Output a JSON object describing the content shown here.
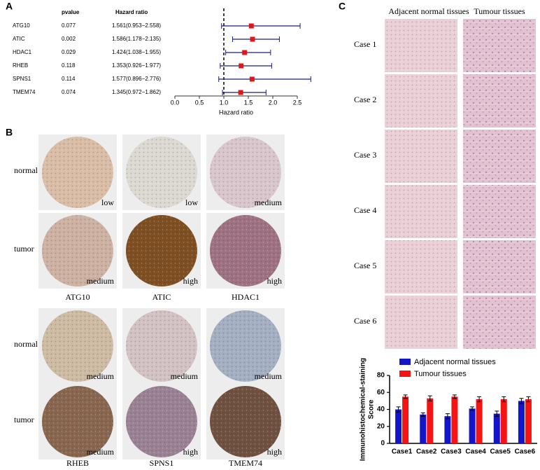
{
  "panels": {
    "a": "A",
    "b": "B",
    "c": "C"
  },
  "chart_data": [
    {
      "type": "forest",
      "columns": [
        "pvalue",
        "Hazard ratio"
      ],
      "categories": [
        "ATG10",
        "ATIC",
        "HDAC1",
        "RHEB",
        "SPNS1",
        "TMEM74"
      ],
      "pvalues": [
        0.077,
        0.002,
        0.029,
        0.118,
        0.114,
        0.074
      ],
      "values": [
        1.561,
        1.586,
        1.424,
        1.353,
        1.577,
        1.345
      ],
      "lower": [
        0.953,
        1.178,
        1.038,
        0.926,
        0.896,
        0.972
      ],
      "upper": [
        2.558,
        2.135,
        1.955,
        1.977,
        2.776,
        1.862
      ],
      "value_labels": [
        "1.561(0.953−2.558)",
        "1.586(1.178−2.135)",
        "1.424(1.038−1.955)",
        "1.353(0.926−1.977)",
        "1.577(0.896−2.776)",
        "1.345(0.972−1.862)"
      ],
      "reference": 1,
      "color": "#e0161b",
      "line_color": "#1c1c7a",
      "xlabel": "Hazard ratio",
      "xlim": [
        0,
        2.5
      ],
      "xticks": [
        {
          "value": 0,
          "label": "0.0"
        },
        0.5,
        {
          "value": 1,
          "label": "1.0"
        },
        1.5,
        {
          "value": 2,
          "label": "2.0"
        },
        2.5
      ]
    },
    {
      "type": "bar",
      "categories": [
        "Case1",
        "Case2",
        "Case3",
        "Case4",
        "Case5",
        "Case6"
      ],
      "series": [
        {
          "name": "Adjacent normal tissues",
          "color": "#1414c8",
          "values": [
            40,
            34,
            32,
            41,
            35,
            50
          ],
          "errors": [
            3,
            2,
            3,
            2,
            3,
            3
          ]
        },
        {
          "name": "Tumour tissues",
          "color": "#f41414",
          "values": [
            55,
            53,
            55,
            52,
            52,
            52
          ],
          "errors": [
            2,
            3,
            2,
            3,
            3,
            3
          ]
        }
      ],
      "ylabel": [
        "Immunohistochemical-staining",
        "Score"
      ],
      "ylim": [
        0,
        80
      ],
      "yticks": [
        0,
        20,
        40,
        60,
        80
      ]
    }
  ],
  "tissue": {
    "row_labels": [
      "normal",
      "tumor",
      "normal",
      "tumor"
    ],
    "genes": [
      "ATG10",
      "ATIC",
      "HDAC1",
      "RHEB",
      "SPNS1",
      "TMEM74"
    ],
    "levels": [
      [
        "low",
        "low",
        "medium"
      ],
      [
        "medium",
        "high",
        "high"
      ],
      [
        "medium",
        "medium",
        "medium"
      ],
      [
        "medium",
        "high",
        "high"
      ]
    ]
  },
  "cases": {
    "column_headers": [
      "Adjacent normal tissues",
      "Tumour tissues"
    ],
    "row_labels": [
      "Case 1",
      "Case 2",
      "Case 3",
      "Case 4",
      "Case 5",
      "Case 6"
    ]
  }
}
